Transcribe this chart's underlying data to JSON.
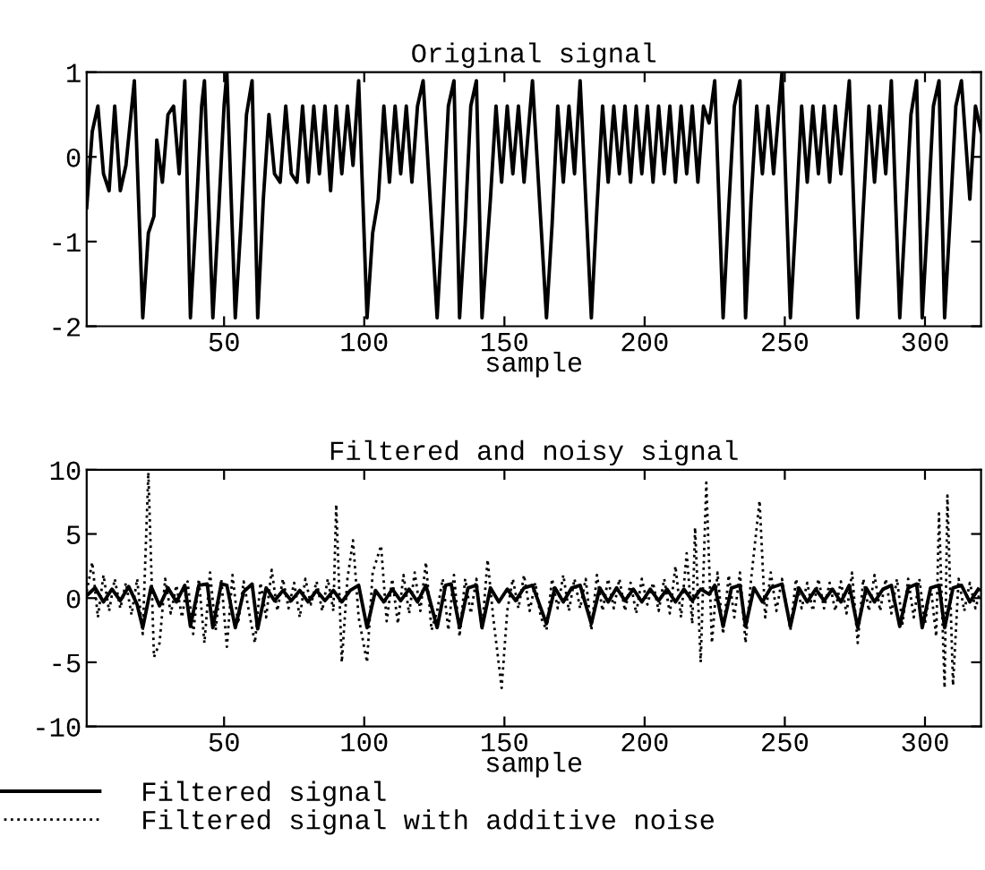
{
  "chart_data": [
    {
      "type": "line",
      "title": "Original signal",
      "xlabel": "sample",
      "xlim": [
        1,
        320
      ],
      "ylim": [
        -2,
        1
      ],
      "xticks": [
        50,
        100,
        150,
        200,
        250,
        300
      ],
      "yticks": [
        -2,
        -1,
        0,
        1
      ],
      "grid": false,
      "legend": false,
      "series": [
        {
          "color": "#000000",
          "line_style": "solid",
          "x": [
            1,
            3,
            5,
            7,
            9,
            11,
            13,
            15,
            18,
            21,
            23,
            25,
            26,
            28,
            30,
            32,
            34,
            36,
            38,
            40,
            42,
            43,
            46,
            48,
            50,
            51,
            54,
            56,
            58,
            60,
            62,
            64,
            66,
            68,
            70,
            72,
            74,
            76,
            78,
            80,
            82,
            84,
            86,
            88,
            90,
            92,
            94,
            96,
            98,
            101,
            103,
            105,
            107,
            109,
            111,
            113,
            115,
            117,
            119,
            121,
            126,
            128,
            130,
            132,
            134,
            136,
            138,
            140,
            142,
            145,
            147,
            149,
            151,
            153,
            155,
            157,
            160,
            165,
            167,
            169,
            171,
            173,
            175,
            177,
            181,
            183,
            185,
            187,
            189,
            191,
            193,
            195,
            197,
            199,
            201,
            203,
            205,
            207,
            209,
            211,
            213,
            215,
            217,
            219,
            221,
            223,
            225,
            228,
            230,
            232,
            234,
            236,
            238,
            240,
            242,
            244,
            246,
            249,
            252,
            254,
            256,
            258,
            260,
            262,
            264,
            266,
            268,
            270,
            273,
            276,
            278,
            280,
            282,
            284,
            286,
            288,
            291,
            293,
            295,
            297,
            299,
            301,
            303,
            305,
            307,
            309,
            311,
            313,
            316,
            318,
            320
          ],
          "values": [
            -0.6,
            0.3,
            0.6,
            -0.2,
            -0.4,
            0.6,
            -0.4,
            -0.1,
            0.9,
            -1.9,
            -0.9,
            -0.7,
            0.2,
            -0.3,
            0.5,
            0.6,
            -0.2,
            0.9,
            -1.9,
            -0.7,
            0.6,
            0.9,
            -1.9,
            -0.7,
            0.6,
            1.0,
            -1.9,
            -0.8,
            0.5,
            0.9,
            -1.9,
            -0.5,
            0.5,
            -0.2,
            -0.3,
            0.6,
            -0.2,
            -0.3,
            0.6,
            -0.3,
            0.6,
            -0.2,
            0.6,
            -0.4,
            0.6,
            -0.2,
            0.6,
            -0.1,
            0.9,
            -1.9,
            -0.9,
            -0.5,
            0.6,
            -0.3,
            0.6,
            -0.2,
            0.6,
            -0.3,
            0.6,
            0.9,
            -1.9,
            -0.7,
            0.6,
            0.9,
            -1.9,
            -0.8,
            0.6,
            0.9,
            -1.9,
            -0.5,
            0.6,
            -0.3,
            0.6,
            -0.2,
            0.6,
            -0.3,
            0.9,
            -1.9,
            -0.8,
            0.6,
            -0.3,
            0.6,
            -0.2,
            0.9,
            -1.9,
            -0.6,
            0.6,
            -0.3,
            0.6,
            -0.2,
            0.6,
            -0.3,
            0.6,
            -0.2,
            0.6,
            -0.3,
            0.6,
            -0.2,
            0.6,
            -0.3,
            0.6,
            -0.2,
            0.6,
            -0.3,
            0.6,
            0.4,
            0.9,
            -1.9,
            -0.6,
            0.6,
            0.9,
            -1.9,
            -0.5,
            0.6,
            -0.2,
            0.6,
            -0.2,
            1.0,
            -1.9,
            -0.7,
            0.6,
            -0.3,
            0.6,
            -0.2,
            0.6,
            -0.3,
            0.6,
            -0.2,
            0.9,
            -1.9,
            -0.6,
            0.6,
            -0.3,
            0.6,
            -0.2,
            0.9,
            -1.9,
            -0.7,
            0.5,
            0.9,
            -1.9,
            -0.7,
            0.6,
            0.9,
            -1.9,
            -0.7,
            0.6,
            0.9,
            -0.5,
            0.6,
            0.3
          ]
        }
      ]
    },
    {
      "type": "line",
      "title": "Filtered and noisy signal",
      "xlabel": "sample",
      "xlim": [
        1,
        320
      ],
      "ylim": [
        -10,
        10
      ],
      "xticks": [
        50,
        100,
        150,
        200,
        250,
        300
      ],
      "yticks": [
        -10,
        -5,
        0,
        5,
        10
      ],
      "grid": false,
      "legend": "bottom",
      "series": [
        {
          "name": "Filtered signal",
          "color": "#000000",
          "line_style": "solid",
          "x": [
            1,
            4,
            7,
            10,
            13,
            16,
            19,
            21,
            24,
            27,
            30,
            33,
            36,
            38,
            41,
            44,
            46,
            49,
            51,
            54,
            57,
            60,
            62,
            65,
            68,
            71,
            74,
            77,
            80,
            83,
            86,
            89,
            92,
            95,
            98,
            101,
            104,
            107,
            110,
            113,
            116,
            119,
            122,
            126,
            129,
            131,
            134,
            137,
            140,
            142,
            145,
            148,
            151,
            154,
            157,
            160,
            165,
            168,
            171,
            174,
            177,
            181,
            184,
            187,
            190,
            193,
            196,
            199,
            202,
            205,
            208,
            211,
            214,
            217,
            220,
            223,
            225,
            228,
            231,
            234,
            236,
            239,
            242,
            245,
            249,
            252,
            255,
            258,
            261,
            264,
            267,
            270,
            273,
            276,
            279,
            282,
            285,
            288,
            291,
            294,
            297,
            299,
            302,
            305,
            307,
            310,
            313,
            316,
            319
          ],
          "values": [
            0.2,
            0.8,
            -0.3,
            0.7,
            -0.2,
            0.9,
            -0.5,
            -2.3,
            0.9,
            -0.6,
            0.8,
            -0.3,
            1.0,
            -2.2,
            1.0,
            1.1,
            -2.3,
            1.1,
            1.0,
            -2.3,
            0.5,
            1.1,
            -2.4,
            0.8,
            -0.2,
            0.6,
            -0.2,
            0.6,
            -0.3,
            0.6,
            -0.2,
            0.6,
            -0.3,
            0.6,
            1.0,
            -2.3,
            0.6,
            -0.3,
            0.7,
            -0.2,
            0.7,
            -0.3,
            1.0,
            -2.3,
            1.0,
            1.1,
            -2.3,
            0.8,
            1.0,
            -2.3,
            0.8,
            -0.3,
            0.7,
            -0.2,
            0.8,
            1.0,
            -2.0,
            0.8,
            -0.3,
            0.8,
            1.0,
            -2.0,
            0.8,
            -0.3,
            0.8,
            -0.2,
            0.7,
            -0.3,
            0.7,
            -0.2,
            0.7,
            -0.3,
            0.7,
            -0.2,
            0.7,
            0.3,
            1.0,
            -2.2,
            0.8,
            1.0,
            -2.2,
            0.8,
            -0.3,
            0.8,
            1.1,
            -2.2,
            0.8,
            -0.3,
            0.7,
            -0.2,
            0.7,
            -0.3,
            1.0,
            -2.3,
            0.8,
            -0.3,
            0.7,
            1.0,
            -2.2,
            0.8,
            1.1,
            -2.3,
            0.8,
            1.0,
            -2.3,
            0.8,
            1.0,
            -0.3,
            0.7
          ]
        },
        {
          "name": "Filtered signal with additive noise",
          "color": "#000000",
          "line_style": "dotted",
          "x": [
            1,
            3,
            5,
            7,
            9,
            11,
            13,
            15,
            17,
            19,
            21,
            23,
            25,
            27,
            29,
            31,
            33,
            35,
            37,
            39,
            41,
            43,
            45,
            47,
            49,
            51,
            53,
            55,
            57,
            59,
            61,
            63,
            65,
            67,
            69,
            71,
            73,
            75,
            77,
            79,
            81,
            83,
            85,
            87,
            89,
            90,
            92,
            94,
            96,
            98,
            101,
            103,
            106,
            108,
            110,
            112,
            114,
            116,
            118,
            120,
            122,
            124,
            126,
            128,
            130,
            132,
            134,
            136,
            138,
            140,
            142,
            144,
            146,
            149,
            151,
            153,
            155,
            157,
            159,
            161,
            163,
            165,
            167,
            169,
            171,
            173,
            175,
            177,
            179,
            181,
            183,
            185,
            187,
            189,
            191,
            193,
            195,
            197,
            199,
            201,
            203,
            205,
            207,
            209,
            211,
            213,
            215,
            217,
            218,
            220,
            222,
            224,
            226,
            228,
            230,
            232,
            234,
            236,
            238,
            241,
            243,
            245,
            247,
            249,
            252,
            254,
            256,
            258,
            260,
            262,
            264,
            266,
            268,
            270,
            272,
            274,
            276,
            278,
            280,
            282,
            284,
            286,
            288,
            290,
            292,
            294,
            296,
            298,
            300,
            302,
            304,
            305,
            307,
            308,
            310,
            312,
            314,
            316,
            318,
            320
          ],
          "values": [
            0.5,
            2.8,
            -1.5,
            1.8,
            -1.0,
            1.5,
            -0.8,
            1.2,
            -1.3,
            1.5,
            -2.8,
            9.8,
            -4.6,
            -3.5,
            1.5,
            -1.2,
            1.0,
            -1.5,
            1.3,
            -2.8,
            1.5,
            -3.5,
            2.0,
            -2.5,
            1.5,
            -3.8,
            1.8,
            -2.0,
            1.3,
            -1.2,
            -3.5,
            1.2,
            -1.5,
            2.2,
            -1.0,
            1.5,
            -0.8,
            1.2,
            -1.5,
            1.5,
            -0.5,
            1.3,
            -1.0,
            1.5,
            -1.0,
            7.3,
            -5.0,
            1.5,
            4.5,
            -1.5,
            -5.0,
            2.0,
            4.1,
            -1.8,
            1.5,
            -2.0,
            1.8,
            -1.2,
            2.0,
            -1.0,
            2.8,
            -2.5,
            -1.0,
            1.5,
            -2.5,
            1.8,
            -3.0,
            1.5,
            -1.2,
            1.5,
            -2.5,
            3.0,
            -1.5,
            -7.0,
            -1.0,
            1.5,
            -0.8,
            1.8,
            -1.0,
            1.2,
            -1.5,
            -2.5,
            1.5,
            -0.8,
            1.8,
            -1.0,
            1.5,
            -0.8,
            1.5,
            -2.5,
            1.8,
            -1.0,
            1.5,
            -0.8,
            1.5,
            -1.0,
            1.2,
            -1.2,
            1.5,
            -0.5,
            1.2,
            -1.0,
            1.5,
            -1.2,
            2.5,
            -1.5,
            3.5,
            -2.0,
            5.5,
            -5.0,
            9.0,
            -3.5,
            2.0,
            -2.8,
            1.8,
            -1.5,
            2.0,
            -3.5,
            1.5,
            7.6,
            -1.5,
            2.0,
            -1.0,
            1.5,
            -2.5,
            1.5,
            -0.8,
            1.2,
            -1.0,
            1.5,
            -0.8,
            1.2,
            -1.0,
            1.3,
            -1.2,
            2.0,
            -3.5,
            1.5,
            -1.0,
            1.8,
            -1.0,
            1.5,
            -1.2,
            1.5,
            -2.0,
            1.5,
            -1.5,
            1.5,
            -2.0,
            1.0,
            -3.0,
            6.6,
            -7.0,
            8.0,
            -6.8,
            1.5,
            -1.0,
            1.2,
            -0.8,
            0.8
          ]
        }
      ]
    }
  ]
}
